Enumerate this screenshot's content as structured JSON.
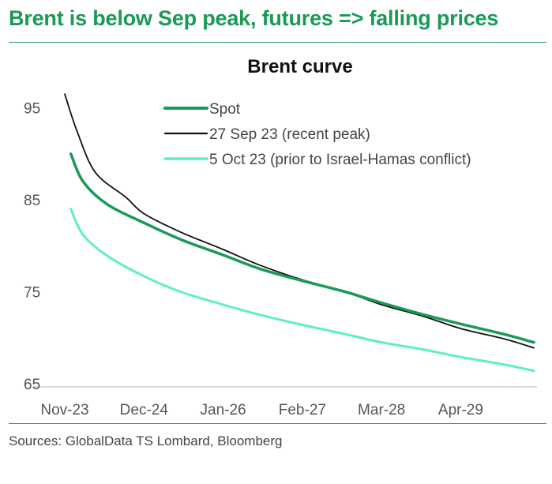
{
  "headline": "Brent is below Sep peak, futures => falling prices",
  "source": "Sources: GlobalData TS Lombard, Bloomberg",
  "chart_data": {
    "type": "line",
    "title": "Brent curve",
    "xlabel": "",
    "ylabel": "",
    "x_ticks": [
      "Nov-23",
      "Dec-24",
      "Jan-26",
      "Feb-27",
      "Mar-28",
      "Apr-29"
    ],
    "x_range": [
      "Nov-23",
      "Apr-30"
    ],
    "y_ticks": [
      65,
      75,
      85,
      95
    ],
    "ylim": [
      65,
      96
    ],
    "grid": false,
    "legend_position": "top-right",
    "series": [
      {
        "name": "Spot",
        "color": "#1a9a56",
        "x": [
          "Dec-23",
          "Feb-24",
          "Jun-24",
          "Dec-24",
          "Jun-25",
          "Jan-26",
          "Jul-26",
          "Feb-27",
          "Sep-27",
          "Mar-28",
          "Oct-28",
          "Apr-29",
          "Nov-29",
          "Apr-30"
        ],
        "values": [
          90.0,
          87.0,
          84.5,
          82.5,
          80.7,
          79.0,
          77.5,
          76.2,
          75.0,
          73.8,
          72.5,
          71.5,
          70.4,
          69.5
        ]
      },
      {
        "name": "27 Sep 23 (recent peak)",
        "color": "#111111",
        "x": [
          "Nov-23",
          "Jan-24",
          "Apr-24",
          "Sep-24",
          "Dec-24",
          "Jun-25",
          "Jan-26",
          "Jul-26",
          "Feb-27",
          "Sep-27",
          "Mar-28",
          "Oct-28",
          "Apr-29",
          "Nov-29",
          "Apr-30"
        ],
        "values": [
          96.5,
          92.5,
          88.0,
          85.3,
          83.5,
          81.5,
          79.6,
          77.9,
          76.3,
          75.0,
          73.6,
          72.3,
          71.0,
          69.9,
          68.9
        ]
      },
      {
        "name": "5 Oct 23 (prior to Israel-Hamas conflict)",
        "color": "#5ef0c0",
        "x": [
          "Dec-23",
          "Feb-24",
          "Jun-24",
          "Dec-24",
          "Jun-25",
          "Jan-26",
          "Jul-26",
          "Feb-27",
          "Sep-27",
          "Mar-28",
          "Oct-28",
          "Apr-29",
          "Nov-29",
          "Apr-30"
        ],
        "values": [
          84.0,
          81.2,
          78.9,
          76.7,
          75.0,
          73.6,
          72.5,
          71.4,
          70.4,
          69.5,
          68.7,
          67.9,
          67.1,
          66.4
        ]
      }
    ]
  }
}
